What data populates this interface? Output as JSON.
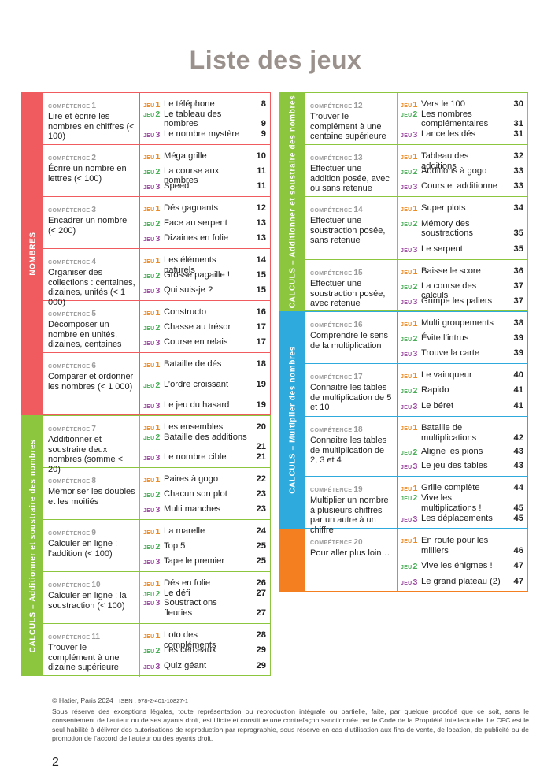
{
  "title": "Liste des jeux",
  "competence_word": "COMPÉTENCE",
  "jeu_word": "JEU",
  "left_sections": [
    {
      "label": "NOMBRES",
      "color": "#ef5b5f",
      "rows": [
        {
          "num": "1",
          "text": "Lire et écrire les nombres en chiffres (< 100)",
          "games": [
            {
              "n": "1",
              "name": "Le téléphone",
              "page": "8"
            },
            {
              "n": "2",
              "name": "Le tableau des nombres",
              "page": "9"
            },
            {
              "n": "3",
              "name": "Le nombre mystère",
              "page": "9"
            }
          ]
        },
        {
          "num": "2",
          "text": "Écrire un nombre en lettres (< 100)",
          "games": [
            {
              "n": "1",
              "name": "Méga grille",
              "page": "10"
            },
            {
              "n": "2",
              "name": "La course aux nombres",
              "page": "11"
            },
            {
              "n": "3",
              "name": "Speed",
              "page": "11"
            }
          ]
        },
        {
          "num": "3",
          "text": "Encadrer un nombre (< 200)",
          "games": [
            {
              "n": "1",
              "name": "Dés gagnants",
              "page": "12"
            },
            {
              "n": "2",
              "name": "Face au serpent",
              "page": "13"
            },
            {
              "n": "3",
              "name": "Dizaines en folie",
              "page": "13"
            }
          ]
        },
        {
          "num": "4",
          "text": "Organiser des collections : centaines, dizaines, unités (< 1 000)",
          "games": [
            {
              "n": "1",
              "name": "Les éléments naturels",
              "page": "14"
            },
            {
              "n": "2",
              "name": "Grosse pagaille !",
              "page": "15"
            },
            {
              "n": "3",
              "name": "Qui suis-je ?",
              "page": "15"
            }
          ]
        },
        {
          "num": "5",
          "text": "Décomposer un nombre en unités, dizaines, centaines",
          "games": [
            {
              "n": "1",
              "name": "Constructo",
              "page": "16"
            },
            {
              "n": "2",
              "name": "Chasse au trésor",
              "page": "17"
            },
            {
              "n": "3",
              "name": "Course en relais",
              "page": "17"
            }
          ]
        },
        {
          "num": "6",
          "text": "Comparer et ordonner les nombres (< 1 000)",
          "games": [
            {
              "n": "1",
              "name": "Bataille de dés",
              "page": "18"
            },
            {
              "n": "2",
              "name": "L’ordre croissant",
              "page": "19"
            },
            {
              "n": "3",
              "name": "Le jeu du hasard",
              "page": "19"
            }
          ]
        }
      ]
    },
    {
      "label": "CALCULS – Additionner et soustraire des nombres",
      "color": "#8cc63f",
      "rows": [
        {
          "num": "7",
          "text": "Additionner et soustraire deux nombres (somme < 20)",
          "games": [
            {
              "n": "1",
              "name": "Les ensembles",
              "page": "20"
            },
            {
              "n": "2",
              "name": "Bataille des additions",
              "page": "21"
            },
            {
              "n": "3",
              "name": "Le nombre cible",
              "page": "21"
            }
          ]
        },
        {
          "num": "8",
          "text": "Mémoriser les doubles et les moitiés",
          "games": [
            {
              "n": "1",
              "name": "Paires à gogo",
              "page": "22"
            },
            {
              "n": "2",
              "name": "Chacun son plot",
              "page": "23"
            },
            {
              "n": "3",
              "name": "Multi manches",
              "page": "23"
            }
          ]
        },
        {
          "num": "9",
          "text": "Calculer en ligne : l’addition (< 100)",
          "games": [
            {
              "n": "1",
              "name": "La marelle",
              "page": "24"
            },
            {
              "n": "2",
              "name": "Top 5",
              "page": "25"
            },
            {
              "n": "3",
              "name": "Tape le premier",
              "page": "25"
            }
          ]
        },
        {
          "num": "10",
          "text": "Calculer en ligne : la soustraction (< 100)",
          "games": [
            {
              "n": "1",
              "name": "Dés en folie",
              "page": "26"
            },
            {
              "n": "2",
              "name": "Le défi",
              "page": "27"
            },
            {
              "n": "3",
              "name": "Soustractions fleuries",
              "page": "27"
            }
          ]
        },
        {
          "num": "11",
          "text": "Trouver le complément à une dizaine supérieure",
          "games": [
            {
              "n": "1",
              "name": "Loto des compléments",
              "page": "28"
            },
            {
              "n": "2",
              "name": "Les cerceaux",
              "page": "29"
            },
            {
              "n": "3",
              "name": "Quiz géant",
              "page": "29"
            }
          ]
        }
      ]
    }
  ],
  "right_sections": [
    {
      "label": "CALCULS – Additionner et soustraire des nombres",
      "color": "#8cc63f",
      "rows": [
        {
          "num": "12",
          "text": "Trouver le complément à une centaine supérieure",
          "games": [
            {
              "n": "1",
              "name": "Vers le 100",
              "page": "30"
            },
            {
              "n": "2",
              "name": "Les nombres complémentaires",
              "page": "31"
            },
            {
              "n": "3",
              "name": "Lance les dés",
              "page": "31"
            }
          ]
        },
        {
          "num": "13",
          "text": "Effectuer une addition posée, avec ou sans retenue",
          "games": [
            {
              "n": "1",
              "name": "Tableau des additions",
              "page": "32"
            },
            {
              "n": "2",
              "name": "Additions à gogo",
              "page": "33"
            },
            {
              "n": "3",
              "name": "Cours et additionne",
              "page": "33"
            }
          ]
        },
        {
          "num": "14",
          "text": "Effectuer une soustraction posée, sans retenue",
          "games": [
            {
              "n": "1",
              "name": "Super plots",
              "page": "34"
            },
            {
              "n": "2",
              "name": "Mémory des soustractions",
              "page": "35"
            },
            {
              "n": "3",
              "name": "Le serpent",
              "page": "35"
            }
          ]
        },
        {
          "num": "15",
          "text": "Effectuer une soustraction posée, avec retenue",
          "games": [
            {
              "n": "1",
              "name": "Baisse le score",
              "page": "36"
            },
            {
              "n": "2",
              "name": "La course des calculs",
              "page": "37"
            },
            {
              "n": "3",
              "name": "Grimpe les paliers",
              "page": "37"
            }
          ]
        }
      ]
    },
    {
      "label": "CALCULS – Multiplier des nombres",
      "color": "#2eaadc",
      "rows": [
        {
          "num": "16",
          "text": "Comprendre le sens de la multiplication",
          "games": [
            {
              "n": "1",
              "name": "Multi groupements",
              "page": "38"
            },
            {
              "n": "2",
              "name": "Évite l’intrus",
              "page": "39"
            },
            {
              "n": "3",
              "name": "Trouve la carte",
              "page": "39"
            }
          ]
        },
        {
          "num": "17",
          "text": "Connaitre les tables de multiplication de 5 et 10",
          "games": [
            {
              "n": "1",
              "name": "Le vainqueur",
              "page": "40"
            },
            {
              "n": "2",
              "name": "Rapido",
              "page": "41"
            },
            {
              "n": "3",
              "name": "Le béret",
              "page": "41"
            }
          ]
        },
        {
          "num": "18",
          "text": "Connaitre les tables de multiplication de 2, 3 et 4",
          "games": [
            {
              "n": "1",
              "name": "Bataille de multiplications",
              "page": "42"
            },
            {
              "n": "2",
              "name": "Aligne les pions",
              "page": "43"
            },
            {
              "n": "3",
              "name": "Le jeu des tables",
              "page": "43"
            }
          ]
        },
        {
          "num": "19",
          "text": "Multiplier un nombre à plusieurs chiffres par un autre à un chiffre",
          "games": [
            {
              "n": "1",
              "name": "Grille complète",
              "page": "44"
            },
            {
              "n": "2",
              "name": "Vive les multiplications !",
              "page": "45"
            },
            {
              "n": "3",
              "name": "Les déplacements",
              "page": "45"
            }
          ]
        }
      ]
    },
    {
      "label": "",
      "color": "#f47f20",
      "rows": [
        {
          "num": "20",
          "text": "Pour aller plus loin…",
          "games": [
            {
              "n": "1",
              "name": "En route pour les milliers",
              "page": "46"
            },
            {
              "n": "2",
              "name": "Vive les énigmes !",
              "page": "47"
            },
            {
              "n": "3",
              "name": "Le grand plateau (2)",
              "page": "47"
            }
          ]
        }
      ]
    }
  ],
  "footer": {
    "copyright": "© Hatier, Paris 2024",
    "isbn_label": "ISBN : 978-2-401-10827-1",
    "legal": "Sous réserve des exceptions légales, toute représentation ou reproduction intégrale ou partielle, faite, par quelque procédé que ce soit, sans le consentement de l’auteur ou de ses ayants droit, est illicite et constitue une contrefaçon sanctionnée par le Code de la Propriété Intellectuelle. Le CFC est le seul habilité à délivrer des autorisations de reproduction par reprographie, sous réserve en cas d’utilisation aux fins de vente, de location, de publicité ou de promotion de l’accord de l’auteur ou des ayants droit.",
    "page_number": "2"
  }
}
